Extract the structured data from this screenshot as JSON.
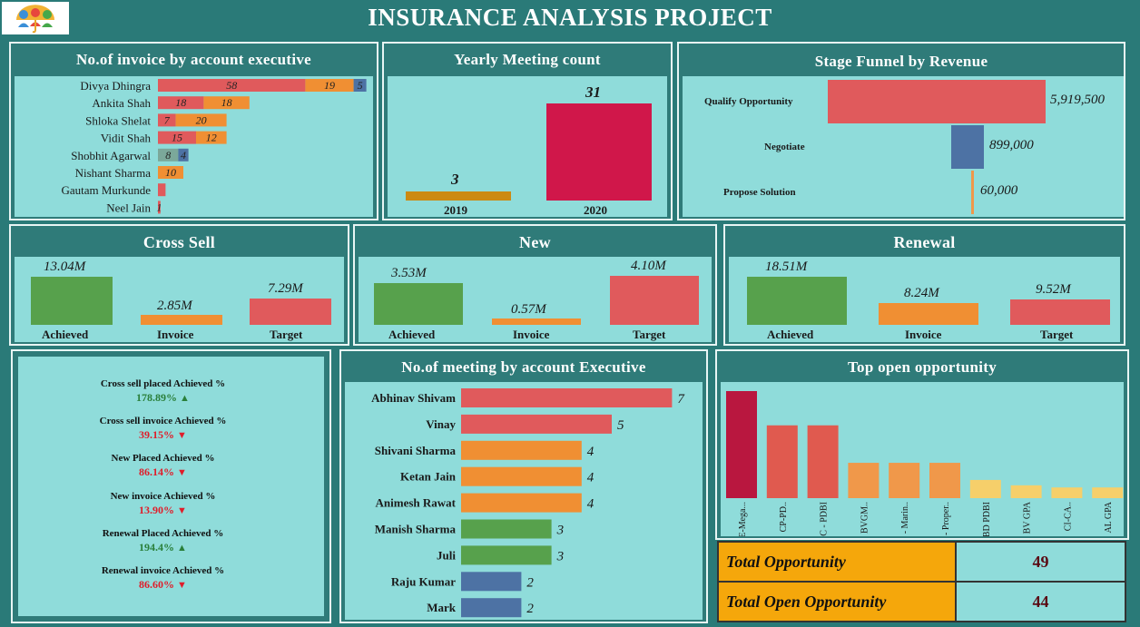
{
  "header": {
    "title": "INSURANCE ANALYSIS PROJECT"
  },
  "invoice_panel": {
    "title": "No.of invoice by account executive",
    "rows": [
      {
        "name": "Divya Dhingra",
        "values": [
          58,
          19,
          5
        ]
      },
      {
        "name": "Ankita Shah",
        "values": [
          18,
          18
        ]
      },
      {
        "name": "Shloka Shelat",
        "values": [
          7,
          20
        ]
      },
      {
        "name": "Vidit Shah",
        "values": [
          15,
          12
        ]
      },
      {
        "name": "Shobhit Agarwal",
        "values": [
          8,
          4
        ]
      },
      {
        "name": "Nishant Sharma",
        "values": [
          10
        ]
      },
      {
        "name": "Gautam Murkunde",
        "values": [
          ""
        ]
      },
      {
        "name": "Neel Jain",
        "values": [
          1
        ]
      }
    ]
  },
  "meeting_panel": {
    "title": "Yearly Meeting count",
    "bars": [
      {
        "year": "2019",
        "value": "3"
      },
      {
        "year": "2020",
        "value": "31"
      }
    ]
  },
  "funnel_panel": {
    "title": "Stage Funnel by Revenue",
    "stages": [
      {
        "label": "Qualify Opportunity",
        "value": "5,919,500"
      },
      {
        "label": "Negotiate",
        "value": "899,000"
      },
      {
        "label": "Propose Solution",
        "value": "60,000"
      }
    ]
  },
  "cross_sell": {
    "title": "Cross Sell",
    "achieved": "13.04M",
    "invoice": "2.85M",
    "target": "7.29M",
    "labels": {
      "a": "Achieved",
      "i": "Invoice",
      "t": "Target"
    }
  },
  "new": {
    "title": "New",
    "achieved": "3.53M",
    "invoice": "0.57M",
    "target": "4.10M",
    "labels": {
      "a": "Achieved",
      "i": "Invoice",
      "t": "Target"
    }
  },
  "renewal": {
    "title": "Renewal",
    "achieved": "18.51M",
    "invoice": "8.24M",
    "target": "9.52M",
    "labels": {
      "a": "Achieved",
      "i": "Invoice",
      "t": "Target"
    }
  },
  "kpis": [
    {
      "label": "Cross sell placed Achieved %",
      "value": "178.89%",
      "dir": "up"
    },
    {
      "label": "Cross sell invoice Achieved %",
      "value": "39.15%",
      "dir": "down"
    },
    {
      "label": "New Placed Achieved %",
      "value": "86.14%",
      "dir": "down"
    },
    {
      "label": "New invoice Achieved %",
      "value": "13.90%",
      "dir": "down"
    },
    {
      "label": "Renewal Placed Achieved %",
      "value": "194.4%",
      "dir": "up"
    },
    {
      "label": "Renewal invoice Achieved %",
      "value": "86.60%",
      "dir": "down"
    }
  ],
  "meetings_exec": {
    "title": "No.of meeting by account Executive",
    "rows": [
      {
        "name": "Abhinav Shivam",
        "value": "7"
      },
      {
        "name": "Vinay",
        "value": "5"
      },
      {
        "name": "Shivani Sharma",
        "value": "4"
      },
      {
        "name": "Ketan Jain",
        "value": "4"
      },
      {
        "name": "Animesh Rawat",
        "value": "4"
      },
      {
        "name": "Manish Sharma",
        "value": "3"
      },
      {
        "name": "Juli",
        "value": "3"
      },
      {
        "name": "Raju Kumar",
        "value": "2"
      },
      {
        "name": "Mark",
        "value": "2"
      }
    ]
  },
  "top_opp": {
    "title": "Top open opportunity",
    "bars": [
      {
        "label": "BE-Mega...",
        "rel": 1.0,
        "color": "#b9173f"
      },
      {
        "label": "CP-PD..",
        "rel": 0.68,
        "color": "#e05a4f"
      },
      {
        "label": "BC - PDBI",
        "rel": 0.68,
        "color": "#e05a4f"
      },
      {
        "label": "BVGM..",
        "rel": 0.33,
        "color": "#f0984a"
      },
      {
        "label": "BL - Marin..",
        "rel": 0.33,
        "color": "#f0984a"
      },
      {
        "label": "ag - Proper..",
        "rel": 0.33,
        "color": "#f0984a"
      },
      {
        "label": "BD PDBI",
        "rel": 0.17,
        "color": "#f6cf6a"
      },
      {
        "label": "BV GPA",
        "rel": 0.12,
        "color": "#f6cf6a"
      },
      {
        "label": "CI-CA..",
        "rel": 0.1,
        "color": "#f6cf6a"
      },
      {
        "label": "AL GPA",
        "rel": 0.1,
        "color": "#f6cf6a"
      }
    ]
  },
  "totals": {
    "total_label": "Total Opportunity",
    "total_value": "49",
    "open_label": "Total Open Opportunity",
    "open_value": "44"
  }
}
